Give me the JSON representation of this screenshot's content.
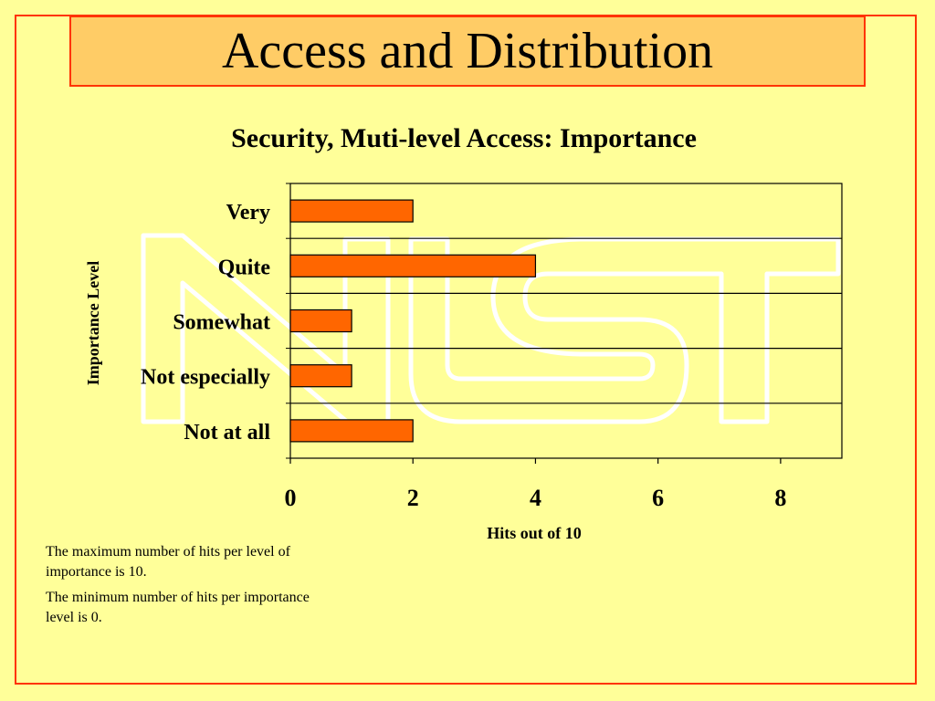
{
  "slide": {
    "title": "Access and Distribution",
    "notes": [
      "The maximum number of hits per level of importance is 10.",
      "The minimum number of hits per importance level is 0."
    ]
  },
  "colors": {
    "background": "#ffff99",
    "border": "#ff3300",
    "title_fill": "#ffcc66",
    "bar_fill": "#ff6600",
    "watermark": "#ffffff"
  },
  "chart_data": {
    "type": "bar",
    "orientation": "horizontal",
    "title": "Security, Muti-level Access: Importance",
    "xlabel": "Hits out of 10",
    "ylabel": "Importance Level",
    "categories": [
      "Very",
      "Quite",
      "Somewhat",
      "Not especially",
      "Not at all"
    ],
    "values": [
      2,
      4,
      1,
      1,
      2
    ],
    "xlim": [
      0,
      9
    ],
    "xticks": [
      0,
      2,
      4,
      6,
      8
    ],
    "grid": "horizontal",
    "legend": "none"
  }
}
